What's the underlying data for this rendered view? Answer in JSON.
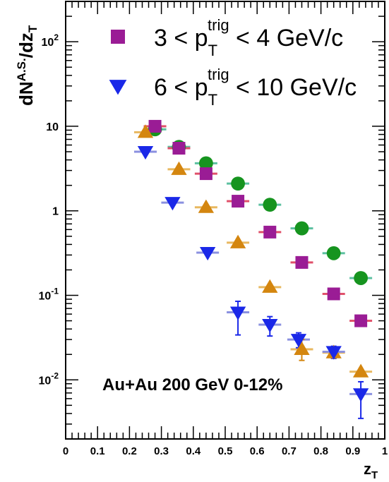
{
  "chart_data": {
    "type": "scatter",
    "xlabel": "z",
    "xlabel_sub": "T",
    "ylabel": "dN",
    "ylabel_sup": "A.S.",
    "ylabel_tail": "/dz",
    "ylabel_sub": "T",
    "xlim": [
      0,
      1
    ],
    "ylim": [
      0.002,
      300
    ],
    "yscale": "log",
    "x_ticks": [
      "0",
      "0.1",
      "0.2",
      "0.3",
      "0.4",
      "0.5",
      "0.6",
      "0.7",
      "0.8",
      "0.9",
      "1"
    ],
    "y_ticks": [
      {
        "base": "10",
        "exp": "-2",
        "value": 0.01
      },
      {
        "base": "10",
        "exp": "-1",
        "value": 0.1
      },
      {
        "base": "1",
        "exp": "",
        "value": 1
      },
      {
        "base": "10",
        "exp": "",
        "value": 10
      },
      {
        "base": "10",
        "exp": "2",
        "value": 100
      }
    ],
    "legend": {
      "placement": "top-right",
      "entries": [
        {
          "series_index": 1,
          "lhs": "3 < p",
          "sub": "T",
          "sup": "trig",
          "rhs": " < 4 GeV/c"
        },
        {
          "series_index": 3,
          "lhs": "6 < p",
          "sub": "T",
          "sup": "trig",
          "rhs": " < 10 GeV/c"
        }
      ]
    },
    "annotation": "Au+Au 200 GeV 0-12%",
    "series": [
      {
        "marker": "circle",
        "color": "#16941f",
        "syst_color": "#5cc0a0",
        "points": [
          {
            "x": 0.28,
            "y": 9.2
          },
          {
            "x": 0.355,
            "y": 5.7
          },
          {
            "x": 0.44,
            "y": 3.65
          },
          {
            "x": 0.54,
            "y": 2.1
          },
          {
            "x": 0.64,
            "y": 1.18
          },
          {
            "x": 0.74,
            "y": 0.62
          },
          {
            "x": 0.84,
            "y": 0.315
          },
          {
            "x": 0.925,
            "y": 0.16
          }
        ]
      },
      {
        "marker": "square",
        "color": "#9a1c95",
        "syst_color": "#e0506a",
        "points": [
          {
            "x": 0.28,
            "y": 10.0
          },
          {
            "x": 0.355,
            "y": 5.5
          },
          {
            "x": 0.44,
            "y": 2.75
          },
          {
            "x": 0.54,
            "y": 1.3
          },
          {
            "x": 0.64,
            "y": 0.56
          },
          {
            "x": 0.74,
            "y": 0.245
          },
          {
            "x": 0.84,
            "y": 0.104
          },
          {
            "x": 0.925,
            "y": 0.05
          }
        ]
      },
      {
        "marker": "triangle-up",
        "color": "#d4860f",
        "syst_color": "#e8b860",
        "points": [
          {
            "x": 0.25,
            "y": 8.5
          },
          {
            "x": 0.355,
            "y": 3.1
          },
          {
            "x": 0.44,
            "y": 1.1
          },
          {
            "x": 0.54,
            "y": 0.42
          },
          {
            "x": 0.64,
            "y": 0.125
          },
          {
            "x": 0.74,
            "y": 0.023,
            "err": [
              0.017,
              0.03
            ]
          },
          {
            "x": 0.84,
            "y": 0.021,
            "err": [
              0.018,
              0.024
            ]
          },
          {
            "x": 0.925,
            "y": 0.0125
          }
        ]
      },
      {
        "marker": "triangle-down",
        "color": "#1a28e8",
        "syst_color": "#8a90e0",
        "points": [
          {
            "x": 0.25,
            "y": 5.0
          },
          {
            "x": 0.335,
            "y": 1.25
          },
          {
            "x": 0.445,
            "y": 0.32
          },
          {
            "x": 0.54,
            "y": 0.063,
            "err": [
              0.034,
              0.085
            ]
          },
          {
            "x": 0.64,
            "y": 0.045,
            "err": [
              0.033,
              0.056
            ]
          },
          {
            "x": 0.73,
            "y": 0.03,
            "err": [
              0.024,
              0.036
            ]
          },
          {
            "x": 0.84,
            "y": 0.0215,
            "err": [
              0.018,
              0.025
            ]
          },
          {
            "x": 0.925,
            "y": 0.0068,
            "err": [
              0.0035,
              0.0095
            ]
          }
        ]
      }
    ]
  }
}
